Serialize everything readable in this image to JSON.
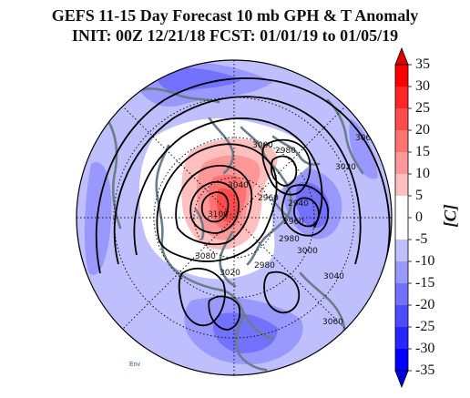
{
  "title": {
    "line1": "GEFS 11-15 Day Forecast 10 mb GPH & T Anomaly",
    "line2": "INIT: 00Z 12/21/18   FCST: 01/01/19 to 01/05/19"
  },
  "colorbar": {
    "unit_label": "[C]",
    "ticks": [
      "35",
      "30",
      "25",
      "20",
      "15",
      "10",
      "5",
      "0",
      "-5",
      "-10",
      "-15",
      "-20",
      "-25",
      "-30",
      "-35"
    ],
    "colors": [
      "#fe0000",
      "#fe2626",
      "#fe4c4c",
      "#fe7272",
      "#fe9898",
      "#ffbfbf",
      "#ffffff",
      "#ffffff",
      "#bfbffe",
      "#9898fe",
      "#7272fe",
      "#4c4cfe",
      "#2626fe",
      "#0000fe"
    ]
  },
  "map": {
    "projection": "north-polar-stereographic",
    "contour_labels": [
      "3000",
      "2980",
      "3040",
      "3100",
      "2960",
      "2940",
      "2960",
      "2980",
      "3080",
      "3020",
      "2980",
      "3000",
      "3040",
      "3060",
      "3060",
      "3020"
    ],
    "anomaly_colors": {
      "warm_core": "#fe4c4c",
      "warm_mid": "#fe9898",
      "warm_light": "#ffbfbf",
      "cold_light": "#bfbffe",
      "cold_mid": "#9898fe",
      "cold_deep": "#7272fe",
      "coastline": "#6a7d8a",
      "contour": "#000000"
    }
  },
  "credit": "Env"
}
